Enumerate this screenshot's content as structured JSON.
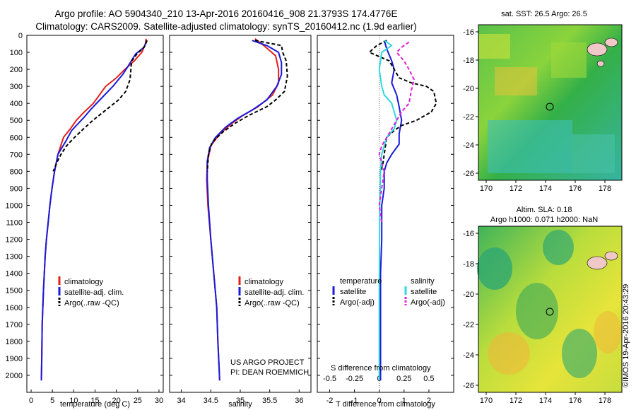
{
  "header": {
    "title_line1": "Argo profile: AO 5904340_210 13-Apr-2016 20160416_908 21.3793S 174.4776E",
    "title_line2": "Climatology: CARS2009. Satellite-adjusted climatology: synTS_20160412.nc (1.9d earlier)"
  },
  "maps": {
    "sst_title": "sat. SST: 26.5 Argo: 26.5",
    "sla_title1": "Altim. SLA: 0.18",
    "sla_title2": "Argo h1000: 0.071 h2000: NaN",
    "x_ticks": [
      "170",
      "172",
      "174",
      "176",
      "178"
    ],
    "y_ticks": [
      "-16",
      "-18",
      "-20",
      "-22",
      "-24",
      "-26"
    ]
  },
  "credits": {
    "project": "US ARGO PROJECT",
    "pi": "PI: DEAN ROEMMICH",
    "copyright": "©IMOS 19-Apr-2016 20:43:29"
  },
  "legends": {
    "temp_sal": [
      "climatology",
      "satellite-adj. clim.",
      "Argo(..raw -QC)"
    ],
    "diff_temperature_head": "temperature",
    "diff_salinity_head": "salinity",
    "diff_satellite": "satellite",
    "diff_argo": "Argo(-adj)"
  },
  "colors": {
    "climatology": "#e0201a",
    "satellite": "#1a1adc",
    "argo": "#000000",
    "salinity_satellite": "#2fd8e0",
    "salinity_argo": "#e020d8",
    "land": "#f0c8c8"
  },
  "chart_data": [
    {
      "type": "line",
      "xlabel": "temperature (deg C)",
      "ylabel": "",
      "xlim": [
        -1,
        31
      ],
      "ylim": [
        2100,
        0
      ],
      "x_ticks": [
        0,
        5,
        10,
        15,
        20,
        25,
        30
      ],
      "y_ticks": [
        0,
        100,
        200,
        300,
        400,
        500,
        600,
        700,
        800,
        900,
        1000,
        1100,
        1200,
        1300,
        1400,
        1500,
        1600,
        1700,
        1800,
        1900,
        2000
      ],
      "series": [
        {
          "name": "climatology",
          "x": [
            27,
            26.8,
            26,
            24.2,
            22,
            20,
            17.5,
            14.6,
            12.5,
            10.6,
            9.2,
            7.6,
            6.3,
            5.5,
            4.9,
            4.4,
            4,
            3.6,
            3.3,
            3.1,
            2.9,
            2.6,
            2.5,
            2.4
          ],
          "y": [
            20,
            50,
            100,
            150,
            200,
            250,
            300,
            400,
            450,
            500,
            550,
            600,
            700,
            800,
            900,
            1000,
            1100,
            1200,
            1300,
            1400,
            1500,
            1700,
            1900,
            2030
          ]
        },
        {
          "name": "satellite-adj. clim.",
          "x": [
            27.2,
            26.5,
            24.5,
            23.5,
            22.8,
            21.5,
            19.2,
            16.5,
            14.2,
            12.5,
            11,
            9.5,
            8.2,
            6.3,
            5.5,
            4.9,
            4.4,
            4,
            3.6,
            3.3,
            3.1,
            2.9,
            2.6,
            2.5,
            2.4
          ],
          "y": [
            30,
            70,
            110,
            150,
            180,
            230,
            300,
            370,
            430,
            480,
            520,
            560,
            620,
            700,
            800,
            900,
            1000,
            1100,
            1200,
            1300,
            1400,
            1500,
            1700,
            1900,
            2030
          ]
        },
        {
          "name": "Argo(..raw -QC)",
          "x": [
            27.2,
            26.5,
            24.8,
            23.6,
            23.4,
            23.2,
            22.2,
            20.5,
            17,
            14.5,
            12.3,
            10.2,
            8.3,
            7,
            6,
            5.2
          ],
          "y": [
            30,
            70,
            110,
            150,
            200,
            260,
            330,
            380,
            450,
            500,
            550,
            600,
            650,
            700,
            750,
            800
          ]
        }
      ]
    },
    {
      "type": "line",
      "xlabel": "salinity",
      "ylabel": "",
      "xlim": [
        33.8,
        36.2
      ],
      "ylim": [
        2100,
        0
      ],
      "x_ticks": [
        34,
        34.5,
        35,
        35.5,
        36
      ],
      "series": [
        {
          "name": "climatology",
          "x": [
            35.25,
            35.4,
            35.6,
            35.65,
            35.65,
            35.55,
            35.3,
            35.05,
            34.85,
            34.65,
            34.5,
            34.44,
            34.43,
            34.45,
            34.5,
            34.55,
            34.6,
            34.62,
            34.64,
            34.65
          ],
          "y": [
            20,
            60,
            120,
            200,
            280,
            350,
            420,
            470,
            520,
            580,
            650,
            750,
            850,
            1000,
            1200,
            1400,
            1600,
            1800,
            1950,
            2030
          ]
        },
        {
          "name": "satellite-adj. clim.",
          "x": [
            35.2,
            35.45,
            35.65,
            35.7,
            35.7,
            35.62,
            35.45,
            35.2,
            34.95,
            34.75,
            34.58,
            34.48,
            34.44,
            34.44,
            34.46,
            34.5,
            34.55,
            34.6,
            34.62,
            34.64,
            34.65
          ],
          "y": [
            30,
            60,
            100,
            160,
            230,
            300,
            380,
            440,
            490,
            540,
            600,
            660,
            740,
            850,
            1000,
            1200,
            1400,
            1600,
            1800,
            1950,
            2030
          ]
        },
        {
          "name": "Argo(..raw -QC)",
          "x": [
            35.25,
            35.7,
            35.72,
            35.78,
            35.8,
            35.75,
            35.6,
            35.45,
            35.15,
            34.9,
            34.7,
            34.52,
            34.46,
            34.45,
            34.44
          ],
          "y": [
            30,
            60,
            100,
            150,
            240,
            330,
            380,
            420,
            470,
            520,
            570,
            630,
            700,
            750,
            800
          ]
        }
      ]
    },
    {
      "type": "line",
      "xlabel": "T difference from climatology",
      "ylabel": "",
      "annotation": "S difference from climatology",
      "xlim": [
        -2.5,
        3
      ],
      "ylim": [
        2100,
        0
      ],
      "x_ticks": [
        -2,
        -1,
        0,
        1,
        2
      ],
      "x_ticks_top": [
        "-0.5",
        "-0.25",
        "0",
        "0.25",
        "0.5"
      ],
      "series": [
        {
          "name": "temperature satellite",
          "x": [
            0.2,
            0.3,
            0.5,
            0.6,
            0.5,
            0.7,
            0.8,
            0.9,
            0.8,
            0.8,
            0.5,
            0.3,
            0.2,
            0.2,
            0.1,
            0.1,
            0.05,
            0.05,
            0.05,
            0.05
          ],
          "y": [
            30,
            80,
            150,
            200,
            280,
            350,
            420,
            500,
            580,
            640,
            700,
            750,
            800,
            900,
            1000,
            1200,
            1400,
            1600,
            1800,
            2030
          ]
        },
        {
          "name": "temperature Argo(-adj)",
          "x": [
            0.3,
            -0.1,
            -0.4,
            0.4,
            0.8,
            1.3,
            1.9,
            2.2,
            2.3,
            2.1,
            1.5,
            0.9,
            0.6,
            0.3,
            0.25,
            0.2,
            0.15,
            0.1,
            0.1
          ],
          "y": [
            30,
            60,
            100,
            150,
            250,
            280,
            300,
            330,
            400,
            450,
            500,
            530,
            560,
            600,
            650,
            700,
            750,
            780,
            800
          ]
        },
        {
          "name": "salinity satellite",
          "x": [
            0.2,
            0.5,
            0.1,
            0,
            0.1,
            0.2,
            0.5,
            0.6,
            0.7,
            0.6,
            0.3,
            0.2,
            0.1,
            0.05,
            0.02,
            0,
            0
          ],
          "y": [
            30,
            60,
            100,
            200,
            300,
            350,
            400,
            450,
            500,
            550,
            600,
            650,
            700,
            800,
            1000,
            1500,
            2030
          ]
        },
        {
          "name": "salinity Argo(-adj)",
          "x": [
            1.2,
            0.9,
            0.7,
            1.0,
            1.2,
            1.4,
            1.3,
            1.2,
            0.9,
            0.7,
            0.5,
            0.3,
            0.1,
            0,
            0.1,
            0.2,
            0.1,
            0,
            0.1
          ],
          "y": [
            40,
            70,
            100,
            150,
            200,
            260,
            320,
            400,
            450,
            500,
            550,
            600,
            650,
            700,
            750,
            800,
            900,
            1000,
            1100
          ]
        }
      ]
    }
  ]
}
